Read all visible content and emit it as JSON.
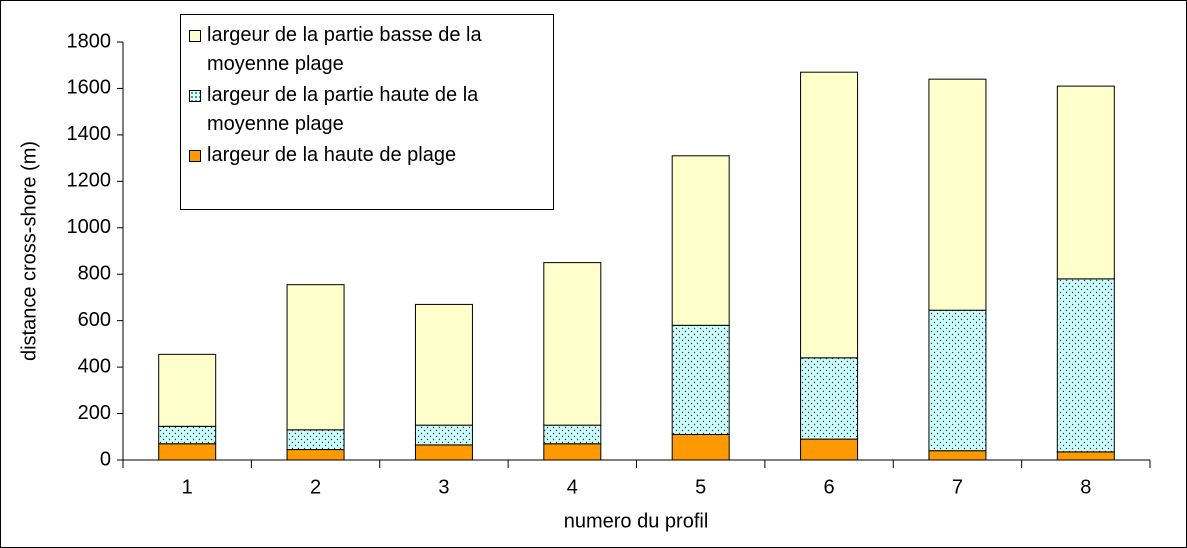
{
  "chart_data": {
    "type": "stacked_bar",
    "xlabel": "numero du profil",
    "ylabel": "distance cross-shore (m)",
    "categories": [
      "1",
      "2",
      "3",
      "4",
      "5",
      "6",
      "7",
      "8"
    ],
    "series": [
      {
        "name": "largeur de la haute de plage",
        "color": "#ff9900",
        "values": [
          70,
          45,
          65,
          70,
          110,
          90,
          40,
          35
        ]
      },
      {
        "name": "largeur de la partie haute de la moyenne plage",
        "color": "#ccffff",
        "pattern": "dots",
        "values": [
          75,
          85,
          85,
          80,
          470,
          350,
          605,
          745
        ]
      },
      {
        "name": "largeur de la partie basse de la moyenne plage",
        "color": "#ffffcc",
        "values": [
          310,
          625,
          520,
          700,
          730,
          1230,
          995,
          830
        ]
      }
    ],
    "ylim": [
      0,
      1800
    ],
    "yticks": [
      0,
      200,
      400,
      600,
      800,
      1000,
      1200,
      1400,
      1600,
      1800
    ],
    "legend": "top-left"
  }
}
